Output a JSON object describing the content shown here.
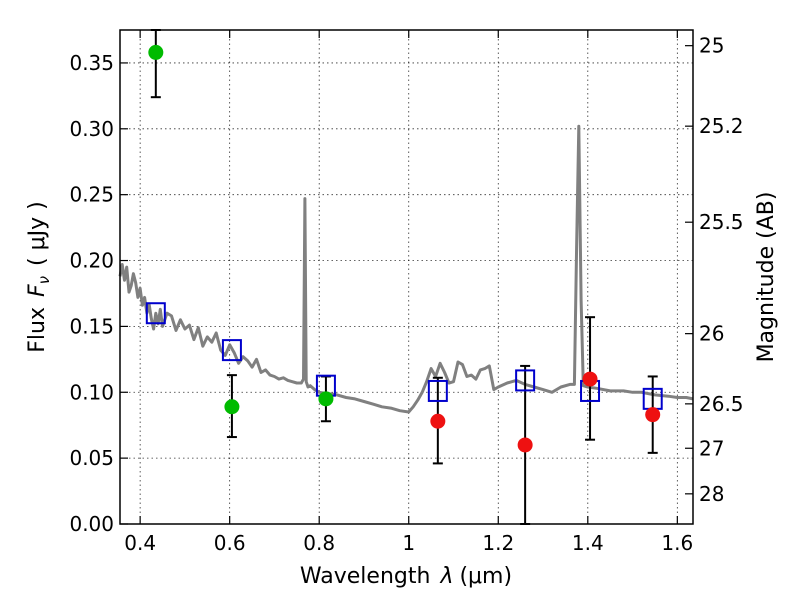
{
  "chart_data": {
    "type": "scatter",
    "xlabel": "Wavelength",
    "xlabel_symbol": "λ",
    "xlabel_unit": "(μm)",
    "ylabel": "Flux",
    "ylabel_symbol": "F",
    "ylabel_subscript": "ν",
    "ylabel_unit": "( μJy )",
    "right_ylabel": "Magnitude (AB)",
    "xlim": [
      0.355,
      1.635
    ],
    "ylim": [
      0.0,
      0.375
    ],
    "grid": true,
    "x_ticks": [
      {
        "value": 0.4,
        "label": "0.4"
      },
      {
        "value": 0.6,
        "label": "0.6"
      },
      {
        "value": 0.8,
        "label": "0.8"
      },
      {
        "value": 1.0,
        "label": "1"
      },
      {
        "value": 1.2,
        "label": "1.2"
      },
      {
        "value": 1.4,
        "label": "1.4"
      },
      {
        "value": 1.6,
        "label": "1.6"
      }
    ],
    "y_ticks": [
      {
        "value": 0.0,
        "label": "0.00"
      },
      {
        "value": 0.05,
        "label": "0.05"
      },
      {
        "value": 0.1,
        "label": "0.10"
      },
      {
        "value": 0.15,
        "label": "0.15"
      },
      {
        "value": 0.2,
        "label": "0.20"
      },
      {
        "value": 0.25,
        "label": "0.25"
      },
      {
        "value": 0.3,
        "label": "0.30"
      },
      {
        "value": 0.35,
        "label": "0.35"
      }
    ],
    "magnitude_ticks": [
      {
        "value": 0.3631,
        "label": "25"
      },
      {
        "value": 0.302,
        "label": "25.2"
      },
      {
        "value": 0.2291,
        "label": "25.5"
      },
      {
        "value": 0.1445,
        "label": "26"
      },
      {
        "value": 0.0912,
        "label": "26.5"
      },
      {
        "value": 0.0575,
        "label": "27"
      },
      {
        "value": 0.0229,
        "label": "28"
      }
    ],
    "series": [
      {
        "kind": "model_spectrum",
        "color": "#808080",
        "x": [
          0.355,
          0.36,
          0.365,
          0.37,
          0.375,
          0.38,
          0.385,
          0.39,
          0.395,
          0.4,
          0.405,
          0.41,
          0.415,
          0.42,
          0.425,
          0.43,
          0.435,
          0.44,
          0.445,
          0.45,
          0.46,
          0.47,
          0.48,
          0.49,
          0.5,
          0.51,
          0.52,
          0.53,
          0.54,
          0.55,
          0.56,
          0.57,
          0.58,
          0.59,
          0.6,
          0.61,
          0.62,
          0.63,
          0.64,
          0.65,
          0.66,
          0.67,
          0.68,
          0.69,
          0.7,
          0.71,
          0.72,
          0.73,
          0.74,
          0.75,
          0.76,
          0.765,
          0.768,
          0.771,
          0.775,
          0.78,
          0.79,
          0.8,
          0.82,
          0.84,
          0.86,
          0.88,
          0.9,
          0.92,
          0.94,
          0.96,
          0.98,
          1.0,
          1.01,
          1.02,
          1.03,
          1.04,
          1.05,
          1.06,
          1.07,
          1.08,
          1.09,
          1.1,
          1.11,
          1.12,
          1.13,
          1.14,
          1.15,
          1.16,
          1.17,
          1.18,
          1.19,
          1.2,
          1.22,
          1.24,
          1.26,
          1.28,
          1.3,
          1.32,
          1.34,
          1.36,
          1.37,
          1.375,
          1.38,
          1.385,
          1.39,
          1.4,
          1.42,
          1.45,
          1.48,
          1.5,
          1.52,
          1.55,
          1.58,
          1.6,
          1.62,
          1.635
        ],
        "y": [
          0.188,
          0.197,
          0.185,
          0.195,
          0.176,
          0.181,
          0.19,
          0.183,
          0.172,
          0.179,
          0.166,
          0.172,
          0.16,
          0.167,
          0.156,
          0.148,
          0.16,
          0.152,
          0.163,
          0.15,
          0.16,
          0.158,
          0.147,
          0.155,
          0.148,
          0.151,
          0.14,
          0.149,
          0.135,
          0.142,
          0.138,
          0.145,
          0.132,
          0.128,
          0.136,
          0.13,
          0.122,
          0.127,
          0.124,
          0.119,
          0.125,
          0.115,
          0.117,
          0.113,
          0.112,
          0.11,
          0.111,
          0.109,
          0.108,
          0.107,
          0.107,
          0.11,
          0.247,
          0.108,
          0.104,
          0.105,
          0.102,
          0.1,
          0.099,
          0.098,
          0.096,
          0.095,
          0.093,
          0.091,
          0.089,
          0.088,
          0.086,
          0.085,
          0.089,
          0.094,
          0.1,
          0.108,
          0.118,
          0.112,
          0.122,
          0.115,
          0.107,
          0.108,
          0.123,
          0.121,
          0.112,
          0.113,
          0.11,
          0.117,
          0.118,
          0.12,
          0.102,
          0.104,
          0.107,
          0.109,
          0.106,
          0.104,
          0.102,
          0.1,
          0.104,
          0.106,
          0.106,
          0.21,
          0.302,
          0.17,
          0.105,
          0.104,
          0.103,
          0.101,
          0.101,
          0.1,
          0.1,
          0.098,
          0.097,
          0.096,
          0.096,
          0.095
        ]
      },
      {
        "kind": "model_photometry",
        "marker": "square",
        "color": "#0000cc",
        "x": [
          0.435,
          0.605,
          0.815,
          1.065,
          1.26,
          1.405,
          1.545
        ],
        "y": [
          0.16,
          0.132,
          0.105,
          0.101,
          0.109,
          0.101,
          0.095
        ]
      },
      {
        "kind": "observed_optical",
        "marker": "circle",
        "color": "#00bb00",
        "x": [
          0.435,
          0.605,
          0.815
        ],
        "y": [
          0.358,
          0.089,
          0.095
        ],
        "yerr_low": [
          0.324,
          0.066,
          0.078
        ],
        "yerr_high": [
          0.375,
          0.113,
          0.112
        ]
      },
      {
        "kind": "observed_nir",
        "marker": "circle",
        "color": "#ee1111",
        "x": [
          1.065,
          1.26,
          1.405,
          1.545
        ],
        "y": [
          0.078,
          0.06,
          0.11,
          0.083
        ],
        "yerr_low": [
          0.046,
          0.0,
          0.064,
          0.054
        ],
        "yerr_high": [
          0.111,
          0.12,
          0.157,
          0.112
        ]
      }
    ]
  }
}
